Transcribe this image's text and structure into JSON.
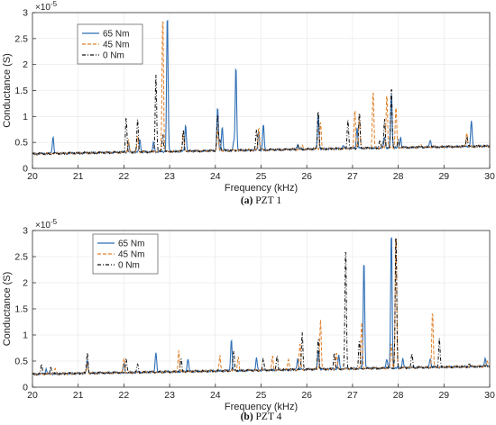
{
  "colors": {
    "c65": "#2f6fb5",
    "c45": "#e0802a",
    "c0": "#111111",
    "axis": "#333333",
    "grid": "#e6e6e6"
  },
  "chart_data": [
    {
      "type": "line",
      "caption_label": "(a)",
      "caption_text": "PZT 1",
      "xlabel": "Frequency (kHz)",
      "ylabel": "Conductance (S)",
      "exponent": "-5",
      "xlim": [
        20,
        30
      ],
      "ylim": [
        0,
        3
      ],
      "y_scale_note": "values in units of 1e-5 S",
      "xticks": [
        "20",
        "21",
        "22",
        "23",
        "24",
        "25",
        "26",
        "27",
        "28",
        "29",
        "30"
      ],
      "yticks": [
        "0",
        "0.5",
        "1",
        "1.5",
        "2",
        "2.5",
        "3"
      ],
      "legend": {
        "position": "top-left",
        "entries": [
          "65 Nm",
          "45 Nm",
          "0 Nm"
        ]
      },
      "baseline": {
        "start": 0.28,
        "end": 0.43
      },
      "series": [
        {
          "name": "65 Nm",
          "style": "solid",
          "peaks": [
            [
              20.45,
              0.62
            ],
            [
              22.1,
              0.5
            ],
            [
              22.35,
              0.55
            ],
            [
              22.65,
              0.5
            ],
            [
              22.95,
              3.0
            ],
            [
              23.35,
              0.85
            ],
            [
              24.05,
              1.2
            ],
            [
              24.15,
              0.8
            ],
            [
              24.4,
              0.5
            ],
            [
              24.45,
              1.98
            ],
            [
              24.95,
              0.7
            ],
            [
              25.05,
              0.85
            ],
            [
              25.8,
              0.45
            ],
            [
              26.25,
              1.05
            ],
            [
              26.8,
              0.45
            ],
            [
              27.1,
              0.8
            ],
            [
              27.7,
              0.6
            ],
            [
              27.85,
              1.45
            ],
            [
              28.05,
              0.6
            ],
            [
              28.7,
              0.55
            ],
            [
              29.6,
              0.92
            ]
          ]
        },
        {
          "name": "45 Nm",
          "style": "dashed",
          "peaks": [
            [
              22.1,
              0.55
            ],
            [
              22.3,
              0.6
            ],
            [
              22.85,
              3.0
            ],
            [
              23.3,
              0.7
            ],
            [
              24.05,
              0.75
            ],
            [
              24.95,
              0.8
            ],
            [
              25.9,
              0.45
            ],
            [
              26.3,
              0.9
            ],
            [
              27.05,
              1.15
            ],
            [
              27.15,
              1.0
            ],
            [
              27.45,
              1.52
            ],
            [
              27.75,
              1.45
            ],
            [
              27.95,
              1.2
            ],
            [
              28.5,
              0.45
            ],
            [
              29.5,
              0.7
            ]
          ]
        },
        {
          "name": "0 Nm",
          "style": "dashdot",
          "peaks": [
            [
              22.05,
              1.0
            ],
            [
              22.3,
              0.95
            ],
            [
              22.7,
              1.8
            ],
            [
              22.85,
              0.65
            ],
            [
              23.3,
              0.75
            ],
            [
              24.05,
              1.05
            ],
            [
              24.1,
              0.55
            ],
            [
              24.9,
              0.75
            ],
            [
              25.8,
              0.45
            ],
            [
              26.25,
              1.15
            ],
            [
              26.9,
              0.95
            ],
            [
              27.15,
              1.1
            ],
            [
              27.6,
              0.55
            ],
            [
              27.7,
              0.95
            ],
            [
              27.85,
              1.6
            ],
            [
              28.0,
              0.55
            ],
            [
              28.5,
              0.45
            ],
            [
              29.5,
              0.62
            ]
          ]
        }
      ]
    },
    {
      "type": "line",
      "caption_label": "(b)",
      "caption_text": "PZT 4",
      "xlabel": "Frequency (kHz)",
      "ylabel": "Conductance (S)",
      "exponent": "-5",
      "xlim": [
        20,
        30
      ],
      "ylim": [
        0,
        3
      ],
      "y_scale_note": "values in units of 1e-5 S",
      "xticks": [
        "20",
        "21",
        "22",
        "23",
        "24",
        "25",
        "26",
        "27",
        "28",
        "29",
        "30"
      ],
      "yticks": [
        "0",
        "0.5",
        "1",
        "1.5",
        "2",
        "2.5",
        "3"
      ],
      "legend": {
        "position": "top-left",
        "entries": [
          "65 Nm",
          "45 Nm",
          "0 Nm"
        ]
      },
      "baseline": {
        "start": 0.25,
        "end": 0.4
      },
      "series": [
        {
          "name": "65 Nm",
          "style": "solid",
          "peaks": [
            [
              20.3,
              0.35
            ],
            [
              21.2,
              0.5
            ],
            [
              22.0,
              0.45
            ],
            [
              22.7,
              0.68
            ],
            [
              23.4,
              0.55
            ],
            [
              24.35,
              0.93
            ],
            [
              24.9,
              0.55
            ],
            [
              25.8,
              0.55
            ],
            [
              26.25,
              0.7
            ],
            [
              26.7,
              0.6
            ],
            [
              27.25,
              2.47
            ],
            [
              27.75,
              0.55
            ],
            [
              27.85,
              3.0
            ],
            [
              28.1,
              0.55
            ],
            [
              28.7,
              0.55
            ],
            [
              29.9,
              0.55
            ]
          ]
        },
        {
          "name": "45 Nm",
          "style": "dashed",
          "peaks": [
            [
              20.5,
              0.35
            ],
            [
              21.2,
              0.45
            ],
            [
              22.0,
              0.55
            ],
            [
              23.2,
              0.7
            ],
            [
              24.1,
              0.6
            ],
            [
              24.5,
              0.6
            ],
            [
              25.25,
              0.6
            ],
            [
              25.6,
              0.55
            ],
            [
              25.85,
              0.85
            ],
            [
              26.3,
              1.3
            ],
            [
              26.65,
              0.65
            ],
            [
              27.2,
              1.25
            ],
            [
              27.85,
              0.85
            ],
            [
              27.95,
              3.0
            ],
            [
              28.75,
              1.45
            ],
            [
              29.95,
              0.5
            ]
          ]
        },
        {
          "name": "0 Nm",
          "style": "dashdot",
          "peaks": [
            [
              20.2,
              0.45
            ],
            [
              20.4,
              0.4
            ],
            [
              21.2,
              0.68
            ],
            [
              22.05,
              0.55
            ],
            [
              22.3,
              0.45
            ],
            [
              23.25,
              0.55
            ],
            [
              24.4,
              0.7
            ],
            [
              25.05,
              0.55
            ],
            [
              25.35,
              0.6
            ],
            [
              25.9,
              1.05
            ],
            [
              26.25,
              0.95
            ],
            [
              26.6,
              0.65
            ],
            [
              26.85,
              2.72
            ],
            [
              27.15,
              0.9
            ],
            [
              27.95,
              3.0
            ],
            [
              28.3,
              0.65
            ],
            [
              28.9,
              0.92
            ],
            [
              29.55,
              0.45
            ]
          ]
        }
      ]
    }
  ]
}
